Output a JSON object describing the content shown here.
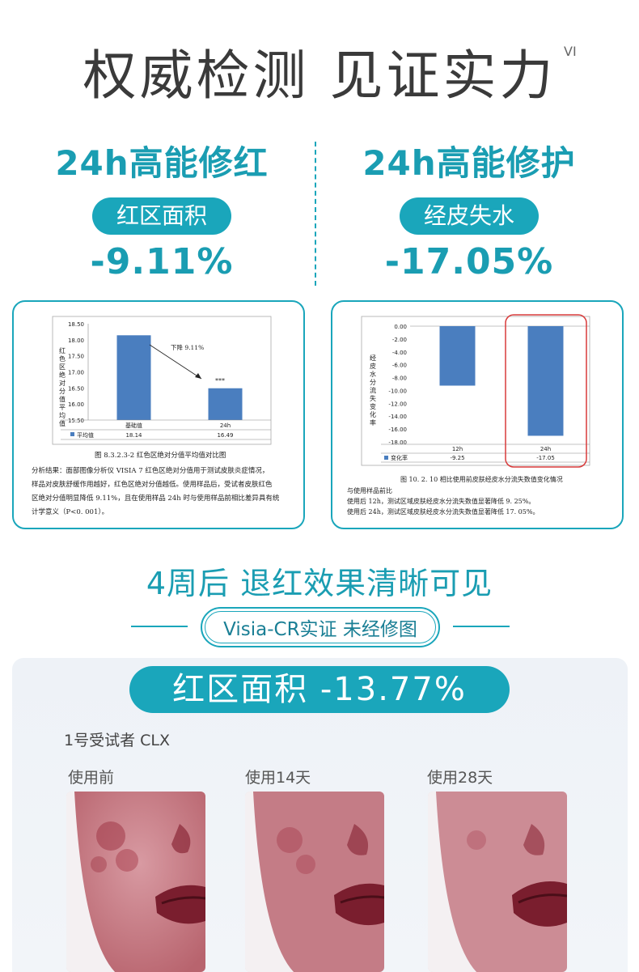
{
  "header": {
    "title": "权威检测 见证实力",
    "title_sup": "VI"
  },
  "left_claim": {
    "heading": "24h高能修红",
    "pill": "红区面积",
    "value": "-9.11%"
  },
  "right_claim": {
    "heading": "24h高能修护",
    "pill": "经皮失水",
    "value": "-17.05%"
  },
  "chart_data": [
    {
      "type": "bar",
      "categories": [
        "基础值",
        "24h"
      ],
      "series": [
        {
          "name": "平均值",
          "values": [
            18.14,
            16.49
          ]
        }
      ],
      "table_values": [
        "18.14",
        "16.49"
      ],
      "ylabel": "红色区绝对分值平均值",
      "yticks": [
        "18.50",
        "18.00",
        "17.50",
        "17.00",
        "16.50",
        "16.00",
        "15.50"
      ],
      "ylim": [
        15.5,
        18.5
      ],
      "annotation": "下降 9.11%",
      "significance": "***",
      "caption": "图 8.3.2.3-2  红色区绝对分值平均值对比图",
      "analysis": [
        "分析结果：面部图像分析仪 VISIA 7 红色区绝对分值用于测试皮肤炎症情况，",
        "样品对皮肤舒缓作用越好，红色区绝对分值越低。使用样品后，受试者皮肤红色",
        "区绝对分值明显降低 9.11%，且在使用样品 24h 时与使用样品前相比差异具有统",
        "计学意义（P<0. 001）。"
      ]
    },
    {
      "type": "bar",
      "categories": [
        "12h",
        "24h"
      ],
      "series": [
        {
          "name": "变化率",
          "values": [
            -9.25,
            -17.05
          ]
        }
      ],
      "table_values": [
        "-9.25",
        "-17.05"
      ],
      "ylabel": "经皮水分流失变化率",
      "yticks": [
        "0.00",
        "-2.00",
        "-4.00",
        "-6.00",
        "-8.00",
        "-10.00",
        "-12.00",
        "-14.00",
        "-16.00",
        "-18.00"
      ],
      "ylim": [
        -18,
        0
      ],
      "caption": "图 10. 2. 10 相比使用前皮肤经皮水分流失数值变化情况",
      "analysis": [
        "与使用样品前比",
        "使用后 12h，测试区域皮肤经皮水分流失数值显著降低 9. 25%。",
        "使用后 24h，测试区域皮肤经皮水分流失数值显著降低 17. 05%。"
      ]
    }
  ],
  "section": {
    "title": "4周后 退红效果清晰可见",
    "tag": "Visia-CR实证 未经修图",
    "metric_pill": "红区面积 -13.77%",
    "subject": "1号受试者  CLX",
    "photos": [
      {
        "label": "使用前"
      },
      {
        "label": "使用14天"
      },
      {
        "label": "使用28天"
      }
    ]
  },
  "colors": {
    "accent": "#1aa6bb",
    "accent_dark": "#1a9db2",
    "bar_blue": "#4a7ebf",
    "highlight_red": "#d83a3a"
  }
}
